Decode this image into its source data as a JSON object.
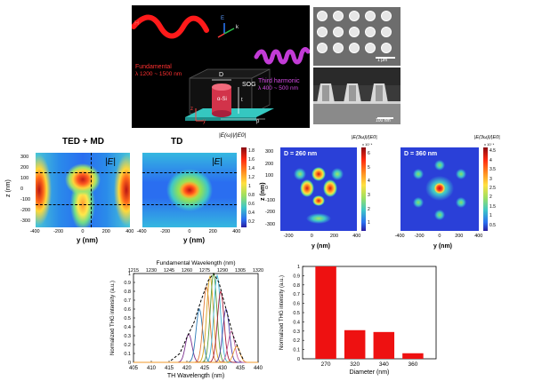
{
  "schematic": {
    "fundamental": "Fundamental",
    "fundamental_range": "λ 1200 ~ 1500 nm",
    "third_harmonic": "Third harmonic",
    "third_harmonic_range": "λ 400 ~ 500 nm",
    "label_D": "D",
    "label_aSi": "α-Si",
    "label_t": "t",
    "label_SOG": "SOG",
    "label_p": "p",
    "label_z": "z",
    "label_y": "y",
    "axis_H": "H",
    "axis_E": "E",
    "axis_k": "k"
  },
  "sem": {
    "scale_top": "1 μm",
    "scale_bottom": "100 nm"
  },
  "maps": {
    "map1_title": "TED + MD",
    "map2_title": "TD",
    "map1_overlay": "|E|",
    "map2_overlay": "|E|",
    "colorbar1_label": "|E(ω)|/|E0|",
    "map3_label": "D = 260 nm",
    "map4_label": "D = 360 nm",
    "colorbar2_label": "|E(3ω)|/|E0|",
    "colorbar3_label": "|E(3ω)|/|E0|",
    "exp_label": "x 10⁻⁴",
    "zlabel": "z (nm)",
    "ylabel": "y (nm)",
    "xticks": [
      "-400",
      "-200",
      "0",
      "200",
      "400"
    ],
    "xticks_short": [
      "-200",
      "0",
      "200",
      "400"
    ],
    "zticks": [
      "300",
      "200",
      "100",
      "0",
      "-100",
      "-200",
      "-300"
    ],
    "cb1_ticks": [
      "1.8",
      "1.6",
      "1.4",
      "1.2",
      "1",
      "0.8",
      "0.6",
      "0.4",
      "0.2"
    ],
    "cb2_ticks": [
      "6",
      "5",
      "4",
      "3",
      "2",
      "1"
    ],
    "cb3_ticks": [
      "4.5",
      "4",
      "3.5",
      "3",
      "2.5",
      "2",
      "1.5",
      "1",
      "0.5"
    ]
  },
  "chart_data": [
    {
      "type": "line",
      "xlabel": "TH Wavelength (nm)",
      "ylabel": "Normalized THG intensity (a.u.)",
      "top_axis_label": "Fundamental Wavelength (nm)",
      "top_ticks": [
        "1215",
        "1230",
        "1245",
        "1260",
        "1275",
        "1290",
        "1305",
        "1320"
      ],
      "xlim": [
        405,
        440
      ],
      "ylim": [
        0,
        1
      ],
      "x_ticks": [
        405,
        410,
        415,
        420,
        425,
        430,
        435,
        440
      ],
      "y_ticks": [
        0,
        0.1,
        0.2,
        0.3,
        0.4,
        0.5,
        0.6,
        0.7,
        0.8,
        0.9,
        1
      ],
      "series": [
        {
          "color": "#7b2f8e",
          "center": 420.5,
          "peak": 0.32,
          "width": 1.3
        },
        {
          "color": "#2c7bb6",
          "center": 423.5,
          "peak": 0.6,
          "width": 1.3
        },
        {
          "color": "#e07b39",
          "center": 425.5,
          "peak": 0.85,
          "width": 1.3
        },
        {
          "color": "#d6a21e",
          "center": 426.5,
          "peak": 0.97,
          "width": 1.3
        },
        {
          "color": "#5a9e3a",
          "center": 427.5,
          "peak": 1.0,
          "width": 1.3
        },
        {
          "color": "#3fb4d6",
          "center": 428.5,
          "peak": 0.98,
          "width": 1.3
        },
        {
          "color": "#a8203c",
          "center": 429.5,
          "peak": 0.8,
          "width": 1.3
        },
        {
          "color": "#4b3ca8",
          "center": 431.0,
          "peak": 0.6,
          "width": 1.3
        },
        {
          "color": "#c25c9a",
          "center": 432.5,
          "peak": 0.35,
          "width": 1.3
        },
        {
          "color": "#f19a2a",
          "center": 434.0,
          "peak": 0.18,
          "width": 1.3
        }
      ],
      "envelope_points": [
        [
          415.5,
          0.02
        ],
        [
          418,
          0.1
        ],
        [
          420,
          0.28
        ],
        [
          422,
          0.45
        ],
        [
          424,
          0.7
        ],
        [
          426,
          0.92
        ],
        [
          427.5,
          1.0
        ],
        [
          429,
          0.9
        ],
        [
          431,
          0.6
        ],
        [
          433,
          0.3
        ],
        [
          435,
          0.1
        ],
        [
          436,
          0.02
        ]
      ]
    },
    {
      "type": "bar",
      "xlabel": "Diameter (nm)",
      "ylabel": "Normalized THG intensity (a.u.)",
      "categories": [
        "270",
        "320",
        "340",
        "360"
      ],
      "values": [
        1.0,
        0.31,
        0.29,
        0.06
      ],
      "ylim": [
        0,
        1
      ],
      "y_ticks": [
        0,
        0.1,
        0.2,
        0.3,
        0.4,
        0.5,
        0.6,
        0.7,
        0.8,
        0.9,
        1
      ]
    }
  ]
}
